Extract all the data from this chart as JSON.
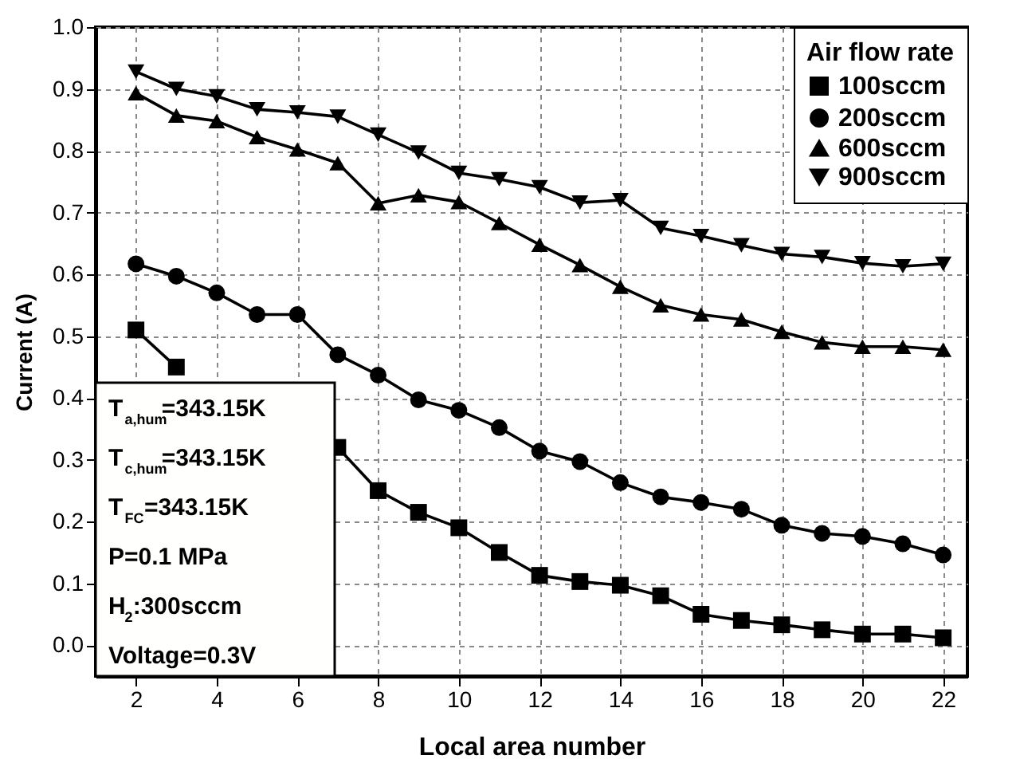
{
  "chart_data": {
    "type": "line",
    "xlabel": "Local area number",
    "ylabel": "Current (A)",
    "legend_title": "Air flow rate",
    "legend": "top right",
    "grid": true,
    "x": [
      2,
      3,
      4,
      5,
      6,
      7,
      8,
      9,
      10,
      11,
      12,
      13,
      14,
      15,
      16,
      17,
      18,
      19,
      20,
      21,
      22
    ],
    "xlim": [
      1,
      22.6
    ],
    "xticks": [
      2,
      4,
      6,
      8,
      10,
      12,
      14,
      16,
      18,
      20,
      22
    ],
    "ylim": [
      -0.05,
      1.0
    ],
    "yticks": [
      {
        "value": 0,
        "label": "0.0"
      },
      {
        "value": 0.1,
        "label": "0.1"
      },
      {
        "value": 0.2,
        "label": "0.2"
      },
      {
        "value": 0.3,
        "label": "0.3"
      },
      {
        "value": 0.4,
        "label": "0.4"
      },
      {
        "value": 0.5,
        "label": "0.5"
      },
      {
        "value": 0.6,
        "label": "0.6"
      },
      {
        "value": 0.7,
        "label": "0.7"
      },
      {
        "value": 0.8,
        "label": "0.8"
      },
      {
        "value": 0.9,
        "label": "0.9"
      },
      {
        "value": 1,
        "label": "1.0"
      }
    ],
    "series": [
      {
        "name": "100sccm",
        "color": "#000000",
        "marker": "square",
        "values": [
          0.51,
          0.45,
          null,
          null,
          null,
          0.32,
          0.25,
          0.215,
          0.19,
          0.15,
          0.113,
          0.103,
          0.097,
          0.08,
          0.05,
          0.04,
          0.033,
          0.025,
          0.018,
          0.018,
          0.012
        ]
      },
      {
        "name": "200sccm",
        "color": "#000000",
        "marker": "circle",
        "values": [
          0.617,
          0.597,
          0.57,
          0.535,
          0.535,
          0.47,
          0.437,
          0.397,
          0.38,
          0.352,
          0.314,
          0.297,
          0.263,
          0.24,
          0.231,
          0.22,
          0.194,
          0.181,
          0.176,
          0.164,
          0.146
        ]
      },
      {
        "name": "600sccm",
        "color": "#000000",
        "marker": "triangle",
        "values": [
          0.893,
          0.857,
          0.848,
          0.822,
          0.802,
          0.78,
          0.715,
          0.728,
          0.717,
          0.683,
          0.648,
          0.615,
          0.58,
          0.55,
          0.535,
          0.527,
          0.507,
          0.49,
          0.483,
          0.483,
          0.478
        ]
      },
      {
        "name": "900sccm",
        "color": "#000000",
        "marker": "triangle-down",
        "values": [
          0.928,
          0.9,
          0.888,
          0.867,
          0.862,
          0.855,
          0.826,
          0.797,
          0.764,
          0.754,
          0.741,
          0.716,
          0.72,
          0.675,
          0.662,
          0.647,
          0.633,
          0.628,
          0.618,
          0.613,
          0.617
        ]
      }
    ],
    "annotations": [
      "T$_{a,hum}$=343.15K",
      "T$_{c,hum}$=343.15K",
      "T$_{FC}$=343.15K",
      "P=0.1 MPa",
      "H$_{2}$:300sccm",
      "Voltage=0.3V"
    ]
  }
}
